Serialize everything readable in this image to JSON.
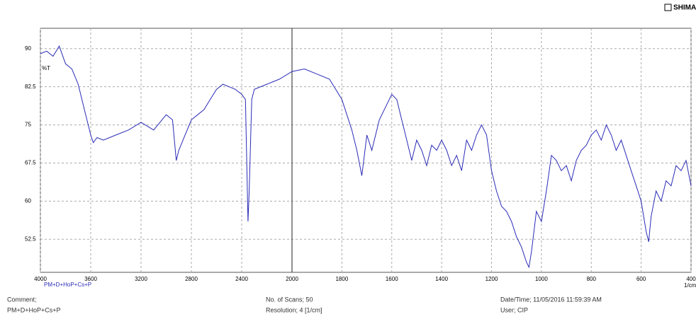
{
  "logo": "SHIMADZU",
  "chart_data": {
    "type": "line",
    "y_label": "%T",
    "x_label": "1/cm",
    "xlim": [
      4000,
      400
    ],
    "xbreak": 2000,
    "xticks": [
      4000,
      3600,
      3200,
      2800,
      2400,
      2000,
      1800,
      1600,
      1400,
      1200,
      1000,
      800,
      600,
      400
    ],
    "ylim": [
      46,
      94
    ],
    "yticks": [
      52.5,
      60,
      67.5,
      75,
      82.5,
      90
    ],
    "grid": true,
    "x": [
      4000,
      3950,
      3900,
      3850,
      3800,
      3750,
      3700,
      3650,
      3600,
      3580,
      3550,
      3500,
      3400,
      3300,
      3200,
      3100,
      3000,
      2950,
      2920,
      2900,
      2850,
      2800,
      2750,
      2700,
      2650,
      2600,
      2550,
      2500,
      2450,
      2400,
      2370,
      2350,
      2340,
      2320,
      2300,
      2200,
      2100,
      2000,
      1950,
      1900,
      1850,
      1800,
      1760,
      1740,
      1720,
      1700,
      1680,
      1650,
      1620,
      1600,
      1580,
      1560,
      1540,
      1520,
      1500,
      1480,
      1460,
      1440,
      1420,
      1400,
      1380,
      1360,
      1340,
      1320,
      1300,
      1280,
      1260,
      1240,
      1220,
      1200,
      1180,
      1160,
      1140,
      1120,
      1100,
      1080,
      1060,
      1050,
      1040,
      1020,
      1000,
      980,
      960,
      940,
      920,
      900,
      880,
      860,
      840,
      820,
      800,
      780,
      760,
      740,
      720,
      700,
      680,
      660,
      640,
      620,
      600,
      580,
      570,
      560,
      540,
      520,
      500,
      480,
      460,
      440,
      420,
      400
    ],
    "series": [
      {
        "name": "PM+D+HoP+Cs+P",
        "color": "#2b2bb8",
        "values": [
          89,
          89.5,
          88.5,
          90.5,
          87,
          86,
          83,
          78,
          73,
          71.5,
          72.5,
          72,
          73,
          74,
          75.5,
          74,
          77,
          76,
          68,
          70,
          73,
          76,
          77,
          78,
          80,
          82,
          83,
          82.5,
          82,
          81,
          80,
          56,
          62,
          80,
          82,
          83,
          84,
          85.5,
          86,
          85,
          84,
          80,
          74,
          70,
          65,
          73,
          70,
          76,
          79,
          81,
          80,
          76,
          72,
          68,
          72,
          70,
          67,
          71,
          70,
          72,
          70,
          67,
          69,
          66,
          72,
          70,
          73,
          75,
          73,
          66,
          62,
          59,
          58,
          56,
          53,
          51,
          48,
          47,
          50,
          58,
          56,
          62,
          69,
          68,
          66,
          67,
          64,
          68,
          70,
          71,
          73,
          74,
          72,
          75,
          73,
          70,
          72,
          69,
          66,
          63,
          60,
          54,
          52,
          57,
          62,
          60,
          64,
          63,
          67,
          66,
          68,
          63
        ]
      }
    ]
  },
  "footer": {
    "comment_label": "Comment;",
    "comment": "PM+D+HoP+Cs+P",
    "scans": "No. of Scans; 50",
    "resolution": "Resolution;   4 [1/cm]",
    "datetime": "Date/Time; 11/05/2016 11:59:39 AM",
    "user": "User;    CIP"
  }
}
